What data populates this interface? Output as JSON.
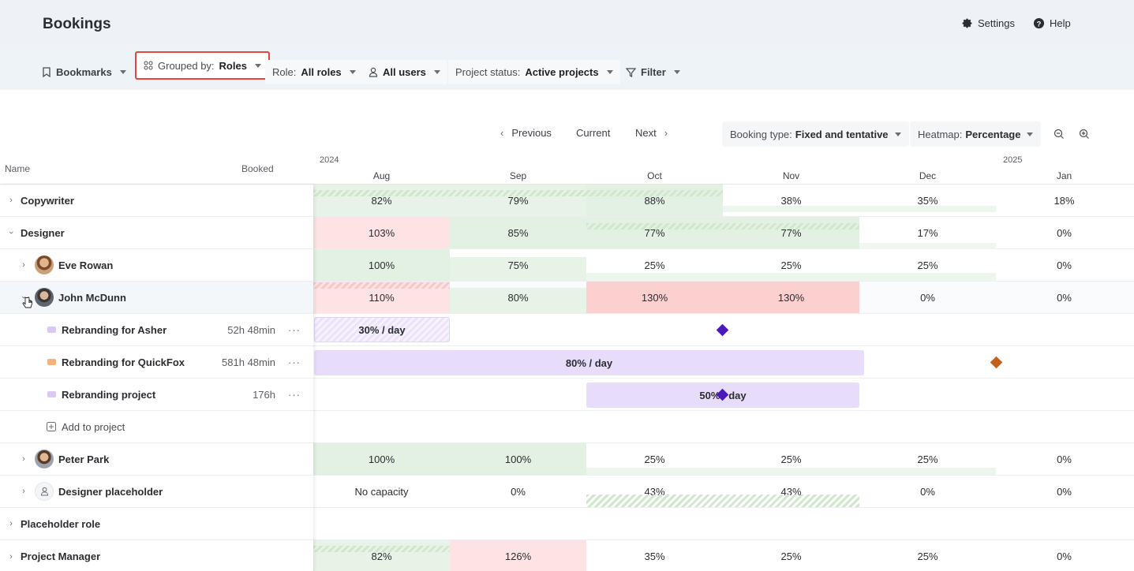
{
  "header": {
    "title": "Bookings",
    "settings_label": "Settings",
    "help_label": "Help"
  },
  "filters": {
    "bookmarks": "Bookmarks",
    "grouped_prefix": "Grouped by:",
    "grouped_value": "Roles",
    "role_prefix": "Role:",
    "role_value": "All roles",
    "users_value": "All users",
    "status_prefix": "Project status:",
    "status_value": "Active projects",
    "filter": "Filter"
  },
  "nav": {
    "previous": "Previous",
    "current": "Current",
    "next": "Next",
    "booking_type_prefix": "Booking type:",
    "booking_type_value": "Fixed and tentative",
    "heatmap_prefix": "Heatmap:",
    "heatmap_value": "Percentage"
  },
  "columns": {
    "name": "Name",
    "booked": "Booked",
    "year1": "2024",
    "year2": "2025",
    "months": [
      "Aug",
      "Sep",
      "Oct",
      "Nov",
      "Dec",
      "Jan"
    ]
  },
  "rows": [
    {
      "name": "Copywriter",
      "cells": [
        "82%",
        "79%",
        "88%",
        "38%",
        "35%",
        "18%"
      ]
    },
    {
      "name": "Designer",
      "cells": [
        "103%",
        "85%",
        "77%",
        "77%",
        "17%",
        "0%"
      ]
    },
    {
      "name": "Eve Rowan",
      "cells": [
        "100%",
        "75%",
        "25%",
        "25%",
        "25%",
        "0%"
      ]
    },
    {
      "name": "John McDunn",
      "cells": [
        "110%",
        "80%",
        "130%",
        "130%",
        "0%",
        "0%"
      ]
    },
    {
      "name": "Rebranding for Asher",
      "booked": "52h 48min",
      "bar": "30% / day",
      "color": "#d9c9f2"
    },
    {
      "name": "Rebranding for QuickFox",
      "booked": "581h 48min",
      "bar": "80% / day",
      "color": "#f2b27a"
    },
    {
      "name": "Rebranding project",
      "booked": "176h",
      "bar": "50% / day",
      "color": "#d9c9f2"
    },
    {
      "name": "Add to project"
    },
    {
      "name": "Peter Park",
      "cells": [
        "100%",
        "100%",
        "25%",
        "25%",
        "25%",
        "0%"
      ]
    },
    {
      "name": "Designer placeholder",
      "cells": [
        "No capacity",
        "0%",
        "43%",
        "43%",
        "0%",
        "0%"
      ]
    },
    {
      "name": "Placeholder role"
    },
    {
      "name": "Project Manager",
      "cells": [
        "82%",
        "126%",
        "35%",
        "25%",
        "25%",
        "0%"
      ]
    }
  ],
  "colors": {
    "highlight_border": "#e0493a",
    "milestone_purple": "#4a1ab8",
    "milestone_orange": "#c0621e",
    "booking_bar": "#e8dcfb"
  },
  "dots_label": "···"
}
